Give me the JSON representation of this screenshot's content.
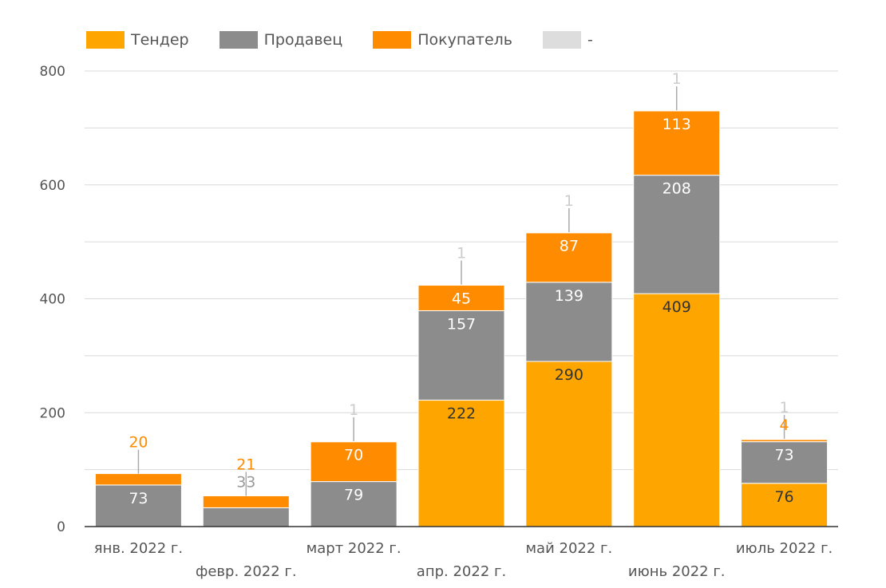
{
  "chart_data": {
    "type": "bar",
    "stacked": true,
    "categories": [
      "янв. 2022 г.",
      "февр. 2022 г.",
      "март 2022 г.",
      "апр. 2022 г.",
      "май 2022 г.",
      "июнь 2022 г.",
      "июль 2022 г."
    ],
    "series": [
      {
        "name": "Тендер",
        "color": "#FFA500",
        "values": [
          0,
          0,
          0,
          222,
          290,
          409,
          76
        ]
      },
      {
        "name": "Продавец",
        "color": "#8C8C8C",
        "values": [
          73,
          33,
          79,
          157,
          139,
          208,
          73
        ]
      },
      {
        "name": "Покупатель",
        "color": "#FF8C00",
        "values": [
          20,
          21,
          70,
          45,
          87,
          113,
          4
        ]
      },
      {
        "name": "-",
        "color": "#DDDDDD",
        "values": [
          0,
          0,
          1,
          1,
          1,
          1,
          1
        ]
      }
    ],
    "yticks": [
      0,
      200,
      400,
      600,
      800
    ],
    "ylim": [
      0,
      800
    ],
    "grid": true,
    "legend_position": "top-left"
  }
}
